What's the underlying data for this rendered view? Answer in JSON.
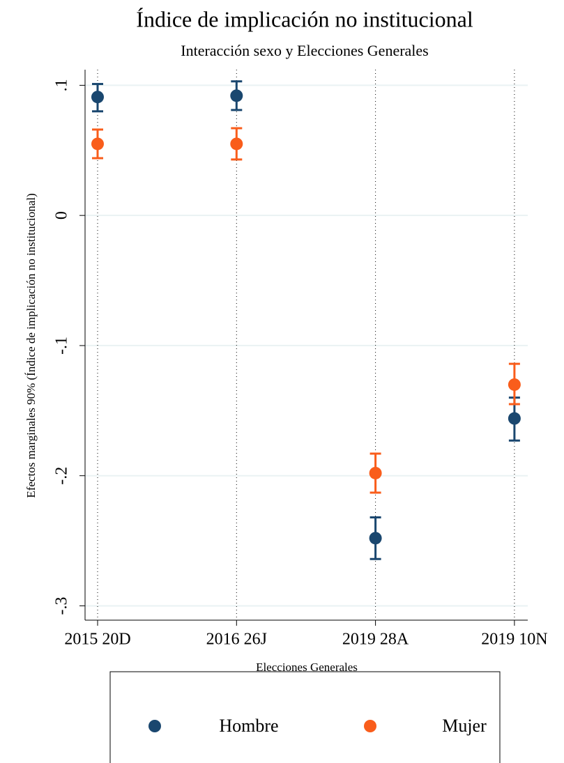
{
  "chart_data": {
    "type": "dot-errorbar",
    "title": "Índice de implicación no institucional",
    "subtitle": "Interacción sexo y Elecciones Generales",
    "ylabel": "Efectos marginales 90% (Índice de implicación no institucional)",
    "xlabel": "Elecciones Generales",
    "categories": [
      "2015 20D",
      "2016 26J",
      "2019 28A",
      "2019 10N"
    ],
    "series": [
      {
        "name": "Hombre",
        "color": "#1a476f",
        "values": [
          0.091,
          0.092,
          -0.248,
          -0.156
        ],
        "ci_low": [
          0.08,
          0.081,
          -0.264,
          -0.173
        ],
        "ci_high": [
          0.101,
          0.103,
          -0.232,
          -0.14
        ]
      },
      {
        "name": "Mujer",
        "color": "#f95d1b",
        "values": [
          0.055,
          0.055,
          -0.198,
          -0.13
        ],
        "ci_low": [
          0.044,
          0.043,
          -0.213,
          -0.145
        ],
        "ci_high": [
          0.066,
          0.067,
          -0.183,
          -0.114
        ]
      }
    ],
    "ylim": [
      -0.311,
      0.112
    ],
    "yticks": [
      {
        "value": 0.1,
        "label": ".1"
      },
      0,
      {
        "value": -0.1,
        "label": "-.1"
      },
      {
        "value": -0.2,
        "label": "-.2"
      },
      {
        "value": -0.3,
        "label": "-.3"
      }
    ],
    "grid": true,
    "legend": "bottom"
  }
}
